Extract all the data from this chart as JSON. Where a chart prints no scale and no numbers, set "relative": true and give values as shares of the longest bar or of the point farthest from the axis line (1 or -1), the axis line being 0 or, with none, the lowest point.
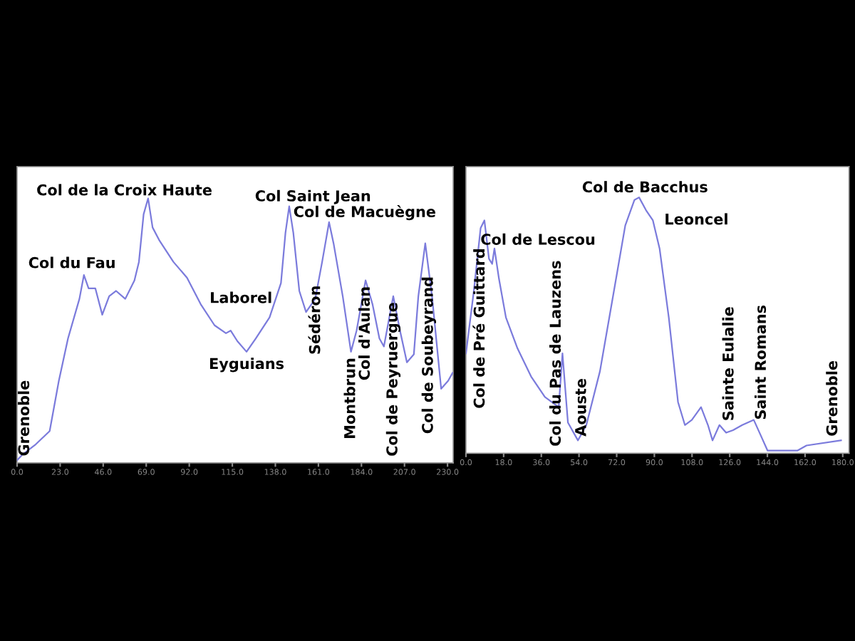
{
  "chart_data": [
    {
      "type": "line",
      "relative": true,
      "tick_labels": "x",
      "xlim": [
        0,
        233
      ],
      "xticks": [
        {
          "value": 0,
          "label": "0.0"
        },
        {
          "value": 23,
          "label": "23.0"
        },
        {
          "value": 46,
          "label": "46.0"
        },
        {
          "value": 69,
          "label": "69.0"
        },
        {
          "value": 92,
          "label": "92.0"
        },
        {
          "value": 115,
          "label": "115.0"
        },
        {
          "value": 138,
          "label": "138.0"
        },
        {
          "value": 161,
          "label": "161.0"
        },
        {
          "value": 184,
          "label": "184.0"
        },
        {
          "value": 207,
          "label": "207.0"
        },
        {
          "value": 230,
          "label": "230.0"
        }
      ],
      "series": [
        {
          "color": "#7b7bdc",
          "x": [
            0,
            2.7,
            10.0,
            17.4,
            22.3,
            27.2,
            33.3,
            35.7,
            38.2,
            41.8,
            45.5,
            49.2,
            52.9,
            57.8,
            62.7,
            65.1,
            67.6,
            70.0,
            72.4,
            76.1,
            83.5,
            90.8,
            98.1,
            105.5,
            111.6,
            114.1,
            117.7,
            122.6,
            127.5,
            134.9,
            141.0,
            143.4,
            145.4,
            147.6,
            150.8,
            154.4,
            159.3,
            163.0,
            166.7,
            169.1,
            174.0,
            178.4,
            181.4,
            186.2,
            189.9,
            193.6,
            196.0,
            201.0,
            204.6,
            208.3,
            212.0,
            214.4,
            218.1,
            221.7,
            226.6,
            230.3,
            232.7
          ],
          "values": [
            0.01,
            0.03,
            0.07,
            0.12,
            0.31,
            0.47,
            0.62,
            0.71,
            0.66,
            0.66,
            0.56,
            0.63,
            0.65,
            0.62,
            0.69,
            0.76,
            0.94,
            1.0,
            0.89,
            0.84,
            0.76,
            0.7,
            0.6,
            0.52,
            0.49,
            0.5,
            0.46,
            0.42,
            0.47,
            0.55,
            0.68,
            0.87,
            0.97,
            0.87,
            0.65,
            0.57,
            0.62,
            0.76,
            0.91,
            0.83,
            0.63,
            0.42,
            0.5,
            0.69,
            0.6,
            0.47,
            0.44,
            0.63,
            0.5,
            0.38,
            0.41,
            0.63,
            0.83,
            0.63,
            0.28,
            0.31,
            0.34
          ]
        }
      ],
      "annotations": [
        {
          "text": "Grenoble",
          "x": 0,
          "y": 0.01
        },
        {
          "text": "Col du Fau",
          "x": 35.7,
          "y": 0.71
        },
        {
          "text": "Col de la Croix Haute",
          "x": 70.0,
          "y": 1.0
        },
        {
          "text": "Eyguians",
          "x": 122.6,
          "y": 0.42
        },
        {
          "text": "Laborel",
          "x": 138.5,
          "y": 0.62
        },
        {
          "text": "Col Saint Jean",
          "x": 145.4,
          "y": 0.97
        },
        {
          "text": "Col de Macuègne",
          "x": 166.7,
          "y": 0.91
        },
        {
          "text": "Sédéron",
          "x": 154.4,
          "y": 0.57
        },
        {
          "text": "Montbrun",
          "x": 178.4,
          "y": 0.42
        },
        {
          "text": "Col d'Aulan",
          "x": 186.2,
          "y": 0.69
        },
        {
          "text": "Col de Peyruergue",
          "x": 201.0,
          "y": 0.63
        },
        {
          "text": "Col de Soubeyrand",
          "x": 220,
          "y": 0.72
        }
      ]
    },
    {
      "type": "line",
      "relative": true,
      "tick_labels": "x",
      "xlim": [
        0,
        183
      ],
      "xticks": [
        {
          "value": 0,
          "label": "0.0"
        },
        {
          "value": 18,
          "label": "18.0"
        },
        {
          "value": 36,
          "label": "36.0"
        },
        {
          "value": 54,
          "label": "54.0"
        },
        {
          "value": 72,
          "label": "72.0"
        },
        {
          "value": 90,
          "label": "90.0"
        },
        {
          "value": 108,
          "label": "108.0"
        },
        {
          "value": 126,
          "label": "126.0"
        },
        {
          "value": 144,
          "label": "144.0"
        },
        {
          "value": 162,
          "label": "162.0"
        },
        {
          "value": 180,
          "label": "180.0"
        }
      ],
      "series": [
        {
          "color": "#7b7bdc",
          "x": [
            0,
            3.7,
            7.0,
            8.8,
            11.0,
            12.5,
            13.6,
            15.8,
            19.1,
            24.6,
            31.1,
            37.7,
            44.3,
            46.1,
            48.7,
            53.5,
            57.5,
            64.0,
            70.6,
            76.1,
            80.5,
            82.7,
            86.0,
            89.3,
            92.5,
            96.9,
            101.3,
            104.6,
            107.9,
            112.3,
            115.6,
            117.8,
            121.1,
            124.3,
            127.6,
            132.0,
            137.5,
            140.8,
            144.1,
            149.6,
            158.3,
            162.7,
            179.2
          ],
          "values": [
            0.39,
            0.63,
            0.88,
            0.91,
            0.76,
            0.74,
            0.8,
            0.68,
            0.53,
            0.41,
            0.3,
            0.22,
            0.18,
            0.39,
            0.12,
            0.05,
            0.11,
            0.32,
            0.63,
            0.89,
            0.99,
            1.0,
            0.95,
            0.91,
            0.8,
            0.53,
            0.2,
            0.11,
            0.13,
            0.18,
            0.11,
            0.05,
            0.11,
            0.08,
            0.09,
            0.11,
            0.13,
            0.07,
            0.01,
            0.01,
            0.01,
            0.03,
            0.05
          ]
        }
      ],
      "annotations": [
        {
          "text": "Col de Pré Guittard",
          "x": 8.8,
          "y": 0.91
        },
        {
          "text": "Col de Lescou",
          "x": 13.6,
          "y": 0.8
        },
        {
          "text": "Col du Pas de Lauzens",
          "x": 46.1,
          "y": 0.39
        },
        {
          "text": "Aouste",
          "x": 53.5,
          "y": 0.05
        },
        {
          "text": "Col de Bacchus",
          "x": 82.7,
          "y": 1.0
        },
        {
          "text": "Leoncel",
          "x": 89.3,
          "y": 0.91
        },
        {
          "text": "Sainte Eulalie",
          "x": 121.1,
          "y": 0.11
        },
        {
          "text": "Saint Romans",
          "x": 137.5,
          "y": 0.13
        },
        {
          "text": "Grenoble",
          "x": 179.2,
          "y": 0.05
        }
      ]
    }
  ]
}
